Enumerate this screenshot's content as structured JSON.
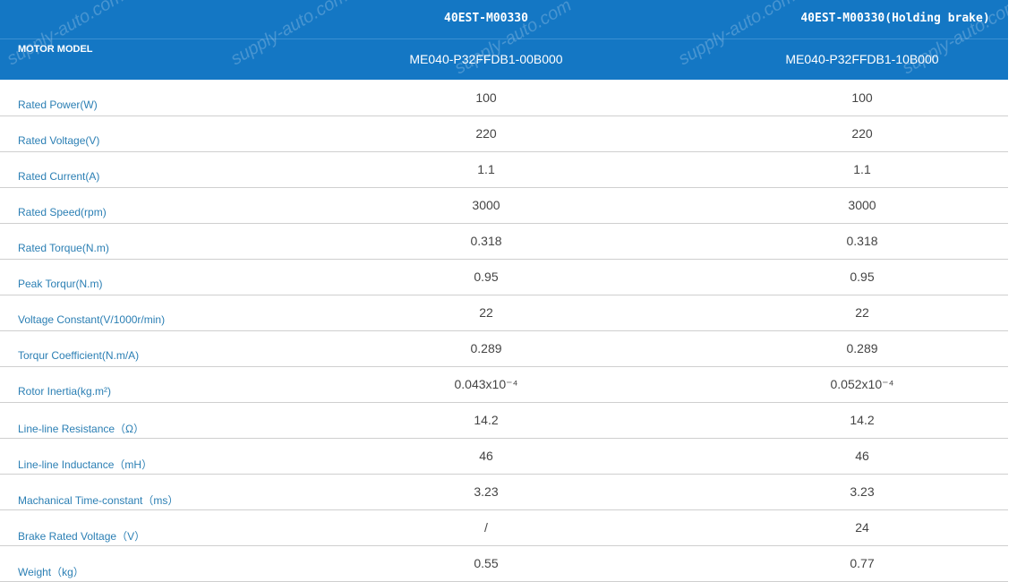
{
  "watermark": "supply-auto.com",
  "header": {
    "label": "MOTOR MODEL",
    "columns": [
      {
        "series": "40EST-M00330",
        "model": "ME040-P32FFDB1-00B000"
      },
      {
        "series": "40EST-M00330(Holding brake)",
        "model": "ME040-P32FFDB1-10B000"
      }
    ]
  },
  "rows": [
    {
      "label": "Rated Power(W)",
      "values": [
        "100",
        "100"
      ]
    },
    {
      "label": "Rated Voltage(V)",
      "values": [
        "220",
        "220"
      ]
    },
    {
      "label": "Rated Current(A)",
      "values": [
        "1.1",
        "1.1"
      ]
    },
    {
      "label": "Rated Speed(rpm)",
      "values": [
        "3000",
        "3000"
      ]
    },
    {
      "label": "Rated Torque(N.m)",
      "values": [
        "0.318",
        "0.318"
      ]
    },
    {
      "label": "Peak Torqur(N.m)",
      "values": [
        "0.95",
        "0.95"
      ]
    },
    {
      "label": "Voltage Constant(V/1000r/min)",
      "values": [
        "22",
        "22"
      ]
    },
    {
      "label": "Torqur Coefficient(N.m/A)",
      "values": [
        "0.289",
        "0.289"
      ]
    },
    {
      "label": "Rotor Inertia(kg.m²)",
      "values": [
        "0.043x10⁻⁴",
        "0.052x10⁻⁴"
      ]
    },
    {
      "label": "Line-line Resistance（Ω）",
      "values": [
        "14.2",
        "14.2"
      ]
    },
    {
      "label": "Line-line Inductance（mH）",
      "values": [
        "46",
        "46"
      ]
    },
    {
      "label": "Machanical Time-constant（ms）",
      "values": [
        "3.23",
        "3.23"
      ]
    },
    {
      "label": "Brake Rated Voltage（V）",
      "values": [
        "/",
        "24"
      ]
    },
    {
      "label": "Weight（kg）",
      "values": [
        "0.55",
        "0.77"
      ]
    }
  ]
}
